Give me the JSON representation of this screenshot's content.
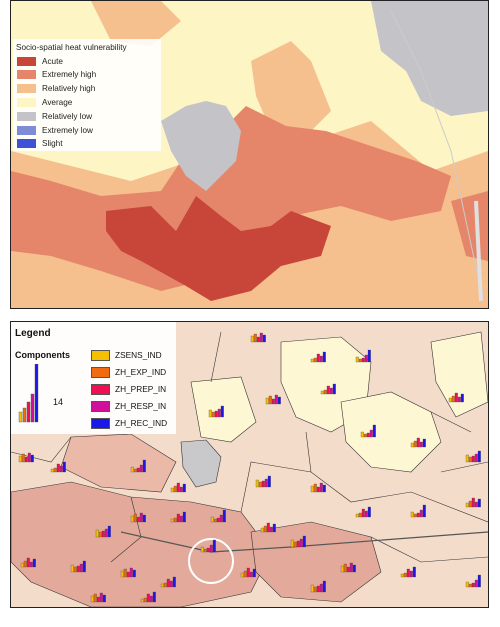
{
  "map_top": {
    "legend": {
      "title": "Socio-spatial heat vulnerability",
      "classes": [
        {
          "label": "Acute",
          "color": "#c8453a"
        },
        {
          "label": "Extremely high",
          "color": "#e5866a"
        },
        {
          "label": "Relatively high",
          "color": "#f5c08e"
        },
        {
          "label": "Average",
          "color": "#fdf5c4"
        },
        {
          "label": "Relatively low",
          "color": "#c3c3c8"
        },
        {
          "label": "Extremely low",
          "color": "#7f8bd4"
        },
        {
          "label": "Slight",
          "color": "#3d52d4"
        }
      ]
    }
  },
  "map_bottom": {
    "legend": {
      "title": "Legend",
      "subtitle": "Components",
      "scale_value": "14",
      "items": [
        {
          "label": "ZSENS_IND",
          "color": "#f5c000"
        },
        {
          "label": "ZH_EXP_IND",
          "color": "#f06a10"
        },
        {
          "label": "ZH_PREP_IN",
          "color": "#ee1050"
        },
        {
          "label": "ZH_RESP_IN",
          "color": "#d0109a"
        },
        {
          "label": "ZH_REC_IND",
          "color": "#1a18e8"
        }
      ]
    }
  }
}
